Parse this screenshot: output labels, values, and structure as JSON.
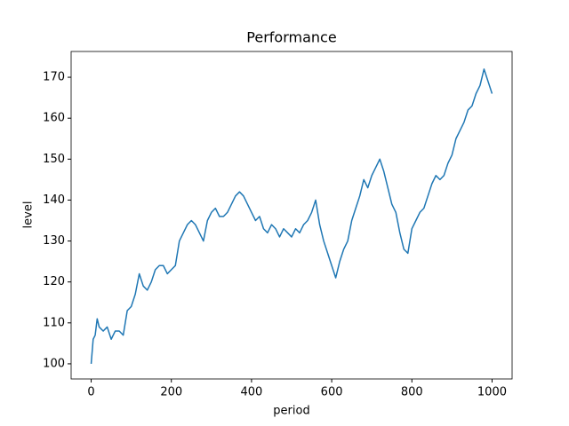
{
  "chart_data": {
    "type": "line",
    "title": "Performance",
    "x_label": "period",
    "y_label": "level",
    "x": [
      0,
      5,
      10,
      15,
      20,
      30,
      40,
      50,
      60,
      70,
      80,
      90,
      100,
      110,
      120,
      130,
      140,
      150,
      160,
      170,
      180,
      190,
      200,
      210,
      220,
      230,
      240,
      250,
      260,
      270,
      280,
      290,
      300,
      310,
      320,
      330,
      340,
      350,
      360,
      370,
      380,
      390,
      400,
      410,
      420,
      430,
      440,
      450,
      460,
      470,
      480,
      490,
      500,
      510,
      520,
      530,
      540,
      550,
      560,
      570,
      580,
      590,
      600,
      610,
      620,
      630,
      640,
      650,
      660,
      670,
      680,
      690,
      700,
      710,
      720,
      730,
      740,
      750,
      760,
      770,
      780,
      790,
      800,
      810,
      820,
      830,
      840,
      850,
      860,
      870,
      880,
      890,
      900,
      910,
      920,
      930,
      940,
      950,
      960,
      970,
      980,
      990,
      1000
    ],
    "values": [
      100,
      106,
      107,
      111,
      109,
      108,
      109,
      106,
      108,
      108,
      107,
      113,
      114,
      117,
      122,
      119,
      118,
      120,
      123,
      124,
      124,
      122,
      123,
      124,
      130,
      132,
      134,
      135,
      134,
      132,
      130,
      135,
      137,
      138,
      136,
      136,
      137,
      139,
      141,
      142,
      141,
      139,
      137,
      135,
      136,
      133,
      132,
      134,
      133,
      131,
      133,
      132,
      131,
      133,
      132,
      134,
      135,
      137,
      140,
      134,
      130,
      127,
      124,
      121,
      125,
      128,
      130,
      135,
      138,
      141,
      145,
      143,
      146,
      148,
      150,
      147,
      143,
      139,
      137,
      132,
      128,
      127,
      133,
      135,
      137,
      138,
      141,
      144,
      146,
      145,
      146,
      149,
      151,
      155,
      157,
      159,
      162,
      163,
      166,
      168,
      172,
      169,
      166
    ],
    "color": "#1f77b4",
    "xlim": [
      -50,
      1050
    ],
    "ylim": [
      96.3,
      176.3
    ],
    "xticks": [
      0,
      200,
      400,
      600,
      800,
      1000
    ],
    "yticks": [
      100,
      110,
      120,
      130,
      140,
      150,
      160,
      170
    ],
    "grid": false
  }
}
